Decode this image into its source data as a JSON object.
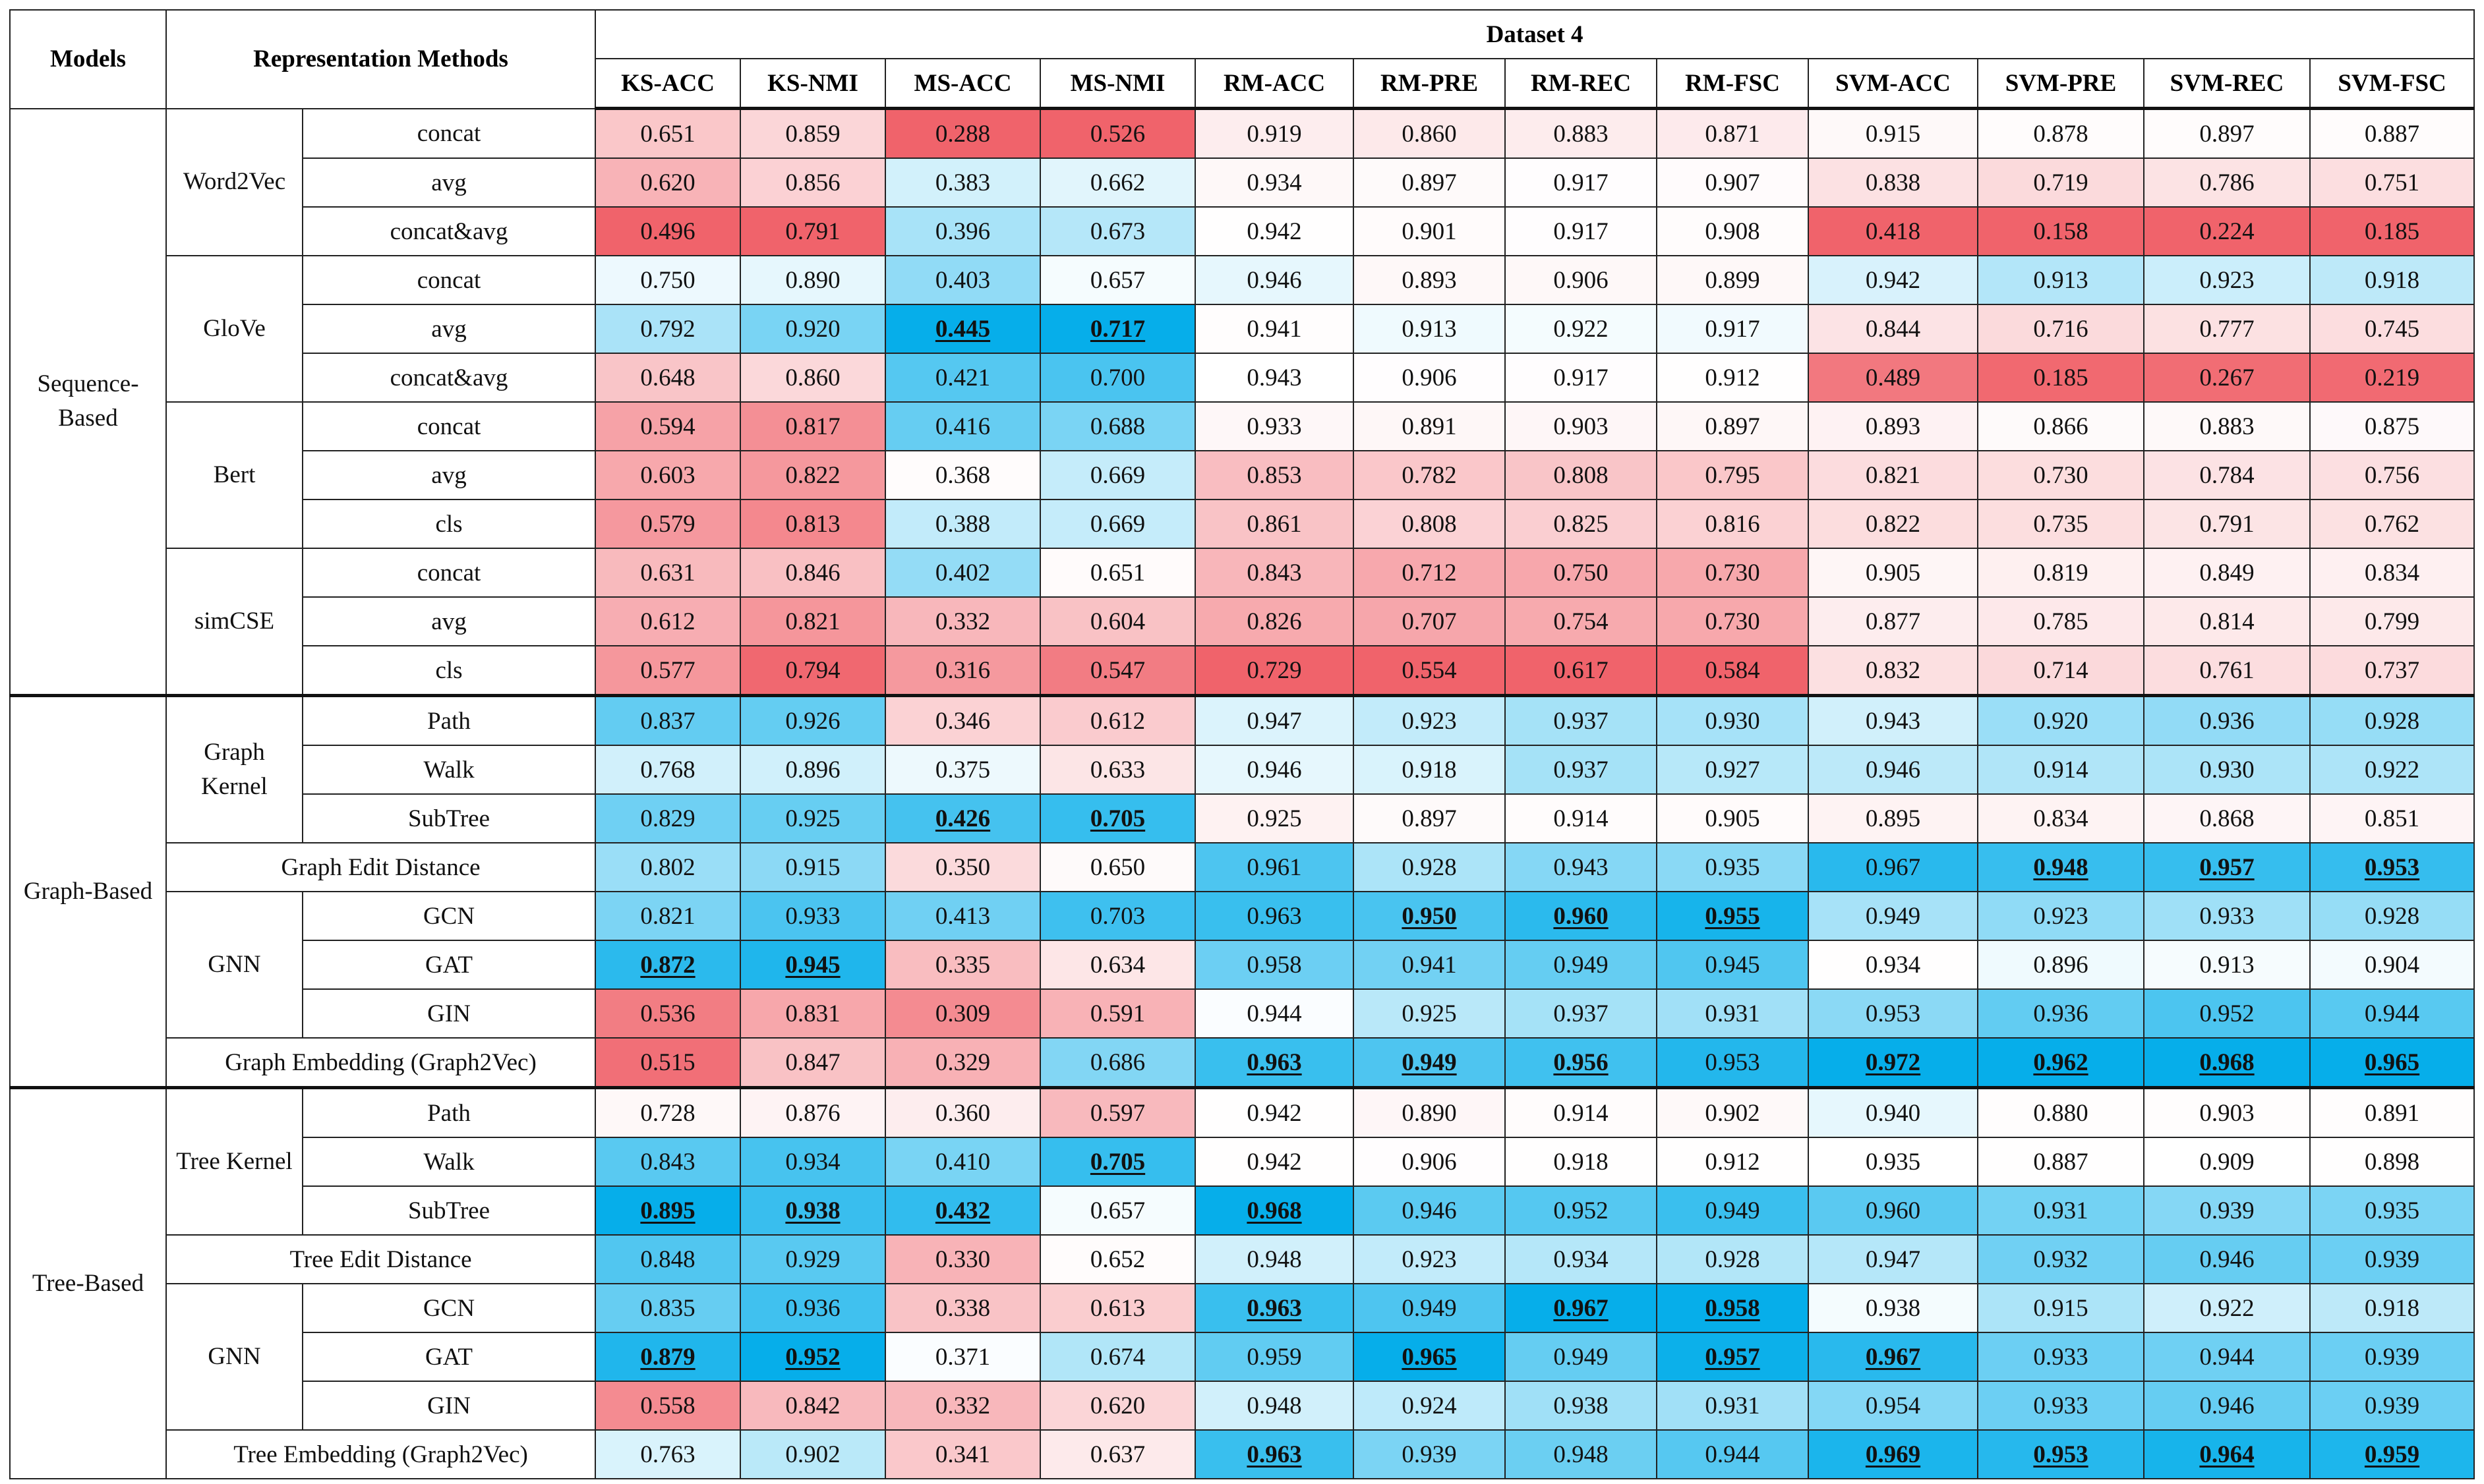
{
  "header": {
    "models": "Models",
    "representation_methods": "Representation Methods",
    "dataset": "Dataset 4",
    "metrics": [
      "KS-ACC",
      "KS-NMI",
      "MS-ACC",
      "MS-NMI",
      "RM-ACC",
      "RM-PRE",
      "RM-REC",
      "RM-FSC",
      "SVM-ACC",
      "SVM-PRE",
      "SVM-REC",
      "SVM-FSC"
    ]
  },
  "model_groups": [
    "Sequence-\nBased",
    "Graph-Based",
    "Tree-Based"
  ],
  "method_groups": {
    "word2vec": "Word2Vec",
    "glove": "GloVe",
    "bert": "Bert",
    "simcse": "simCSE",
    "graph_kernel": "Graph\nKernel",
    "graph_gnn": "GNN",
    "tree_kernel": "Tree Kernel",
    "tree_gnn": "GNN"
  },
  "palette": {
    "red": "#f0636b",
    "blue": "#06aeea",
    "white": "#ffffff"
  },
  "rows": [
    {
      "label": "concat",
      "values": [
        "0.651",
        "0.859",
        "0.288",
        "0.526",
        "0.919",
        "0.860",
        "0.883",
        "0.871",
        "0.915",
        "0.878",
        "0.897",
        "0.887"
      ],
      "best": []
    },
    {
      "label": "avg",
      "values": [
        "0.620",
        "0.856",
        "0.383",
        "0.662",
        "0.934",
        "0.897",
        "0.917",
        "0.907",
        "0.838",
        "0.719",
        "0.786",
        "0.751"
      ],
      "best": []
    },
    {
      "label": "concat&avg",
      "values": [
        "0.496",
        "0.791",
        "0.396",
        "0.673",
        "0.942",
        "0.901",
        "0.917",
        "0.908",
        "0.418",
        "0.158",
        "0.224",
        "0.185"
      ],
      "best": []
    },
    {
      "label": "concat",
      "values": [
        "0.750",
        "0.890",
        "0.403",
        "0.657",
        "0.946",
        "0.893",
        "0.906",
        "0.899",
        "0.942",
        "0.913",
        "0.923",
        "0.918"
      ],
      "best": []
    },
    {
      "label": "avg",
      "values": [
        "0.792",
        "0.920",
        "0.445",
        "0.717",
        "0.941",
        "0.913",
        "0.922",
        "0.917",
        "0.844",
        "0.716",
        "0.777",
        "0.745"
      ],
      "best": [
        2,
        3
      ]
    },
    {
      "label": "concat&avg",
      "values": [
        "0.648",
        "0.860",
        "0.421",
        "0.700",
        "0.943",
        "0.906",
        "0.917",
        "0.912",
        "0.489",
        "0.185",
        "0.267",
        "0.219"
      ],
      "best": []
    },
    {
      "label": "concat",
      "values": [
        "0.594",
        "0.817",
        "0.416",
        "0.688",
        "0.933",
        "0.891",
        "0.903",
        "0.897",
        "0.893",
        "0.866",
        "0.883",
        "0.875"
      ],
      "best": []
    },
    {
      "label": "avg",
      "values": [
        "0.603",
        "0.822",
        "0.368",
        "0.669",
        "0.853",
        "0.782",
        "0.808",
        "0.795",
        "0.821",
        "0.730",
        "0.784",
        "0.756"
      ],
      "best": []
    },
    {
      "label": "cls",
      "values": [
        "0.579",
        "0.813",
        "0.388",
        "0.669",
        "0.861",
        "0.808",
        "0.825",
        "0.816",
        "0.822",
        "0.735",
        "0.791",
        "0.762"
      ],
      "best": []
    },
    {
      "label": "concat",
      "values": [
        "0.631",
        "0.846",
        "0.402",
        "0.651",
        "0.843",
        "0.712",
        "0.750",
        "0.730",
        "0.905",
        "0.819",
        "0.849",
        "0.834"
      ],
      "best": []
    },
    {
      "label": "avg",
      "values": [
        "0.612",
        "0.821",
        "0.332",
        "0.604",
        "0.826",
        "0.707",
        "0.754",
        "0.730",
        "0.877",
        "0.785",
        "0.814",
        "0.799"
      ],
      "best": []
    },
    {
      "label": "cls",
      "values": [
        "0.577",
        "0.794",
        "0.316",
        "0.547",
        "0.729",
        "0.554",
        "0.617",
        "0.584",
        "0.832",
        "0.714",
        "0.761",
        "0.737"
      ],
      "best": []
    },
    {
      "label": "Path",
      "values": [
        "0.837",
        "0.926",
        "0.346",
        "0.612",
        "0.947",
        "0.923",
        "0.937",
        "0.930",
        "0.943",
        "0.920",
        "0.936",
        "0.928"
      ],
      "best": []
    },
    {
      "label": "Walk",
      "values": [
        "0.768",
        "0.896",
        "0.375",
        "0.633",
        "0.946",
        "0.918",
        "0.937",
        "0.927",
        "0.946",
        "0.914",
        "0.930",
        "0.922"
      ],
      "best": []
    },
    {
      "label": "SubTree",
      "values": [
        "0.829",
        "0.925",
        "0.426",
        "0.705",
        "0.925",
        "0.897",
        "0.914",
        "0.905",
        "0.895",
        "0.834",
        "0.868",
        "0.851"
      ],
      "best": [
        2,
        3
      ]
    },
    {
      "label": "Graph Edit Distance",
      "values": [
        "0.802",
        "0.915",
        "0.350",
        "0.650",
        "0.961",
        "0.928",
        "0.943",
        "0.935",
        "0.967",
        "0.948",
        "0.957",
        "0.953"
      ],
      "best": [
        9,
        10,
        11
      ]
    },
    {
      "label": "GCN",
      "values": [
        "0.821",
        "0.933",
        "0.413",
        "0.703",
        "0.963",
        "0.950",
        "0.960",
        "0.955",
        "0.949",
        "0.923",
        "0.933",
        "0.928"
      ],
      "best": [
        5,
        6,
        7
      ]
    },
    {
      "label": "GAT",
      "values": [
        "0.872",
        "0.945",
        "0.335",
        "0.634",
        "0.958",
        "0.941",
        "0.949",
        "0.945",
        "0.934",
        "0.896",
        "0.913",
        "0.904"
      ],
      "best": [
        0,
        1
      ]
    },
    {
      "label": "GIN",
      "values": [
        "0.536",
        "0.831",
        "0.309",
        "0.591",
        "0.944",
        "0.925",
        "0.937",
        "0.931",
        "0.953",
        "0.936",
        "0.952",
        "0.944"
      ],
      "best": []
    },
    {
      "label": "Graph Embedding (Graph2Vec)",
      "values": [
        "0.515",
        "0.847",
        "0.329",
        "0.686",
        "0.963",
        "0.949",
        "0.956",
        "0.953",
        "0.972",
        "0.962",
        "0.968",
        "0.965"
      ],
      "best": [
        4,
        5,
        6,
        8,
        9,
        10,
        11
      ]
    },
    {
      "label": "Path",
      "values": [
        "0.728",
        "0.876",
        "0.360",
        "0.597",
        "0.942",
        "0.890",
        "0.914",
        "0.902",
        "0.940",
        "0.880",
        "0.903",
        "0.891"
      ],
      "best": []
    },
    {
      "label": "Walk",
      "values": [
        "0.843",
        "0.934",
        "0.410",
        "0.705",
        "0.942",
        "0.906",
        "0.918",
        "0.912",
        "0.935",
        "0.887",
        "0.909",
        "0.898"
      ],
      "best": [
        3
      ]
    },
    {
      "label": "SubTree",
      "values": [
        "0.895",
        "0.938",
        "0.432",
        "0.657",
        "0.968",
        "0.946",
        "0.952",
        "0.949",
        "0.960",
        "0.931",
        "0.939",
        "0.935"
      ],
      "best": [
        0,
        1,
        2,
        4
      ]
    },
    {
      "label": "Tree Edit Distance",
      "values": [
        "0.848",
        "0.929",
        "0.330",
        "0.652",
        "0.948",
        "0.923",
        "0.934",
        "0.928",
        "0.947",
        "0.932",
        "0.946",
        "0.939"
      ],
      "best": []
    },
    {
      "label": "GCN",
      "values": [
        "0.835",
        "0.936",
        "0.338",
        "0.613",
        "0.963",
        "0.949",
        "0.967",
        "0.958",
        "0.938",
        "0.915",
        "0.922",
        "0.918"
      ],
      "best": [
        4,
        6,
        7
      ]
    },
    {
      "label": "GAT",
      "values": [
        "0.879",
        "0.952",
        "0.371",
        "0.674",
        "0.959",
        "0.965",
        "0.949",
        "0.957",
        "0.967",
        "0.933",
        "0.944",
        "0.939"
      ],
      "best": [
        0,
        1,
        5,
        7,
        8
      ]
    },
    {
      "label": "GIN",
      "values": [
        "0.558",
        "0.842",
        "0.332",
        "0.620",
        "0.948",
        "0.924",
        "0.938",
        "0.931",
        "0.954",
        "0.933",
        "0.946",
        "0.939"
      ],
      "best": []
    },
    {
      "label": "Tree Embedding (Graph2Vec)",
      "values": [
        "0.763",
        "0.902",
        "0.341",
        "0.637",
        "0.963",
        "0.939",
        "0.948",
        "0.944",
        "0.969",
        "0.953",
        "0.964",
        "0.959"
      ],
      "best": [
        4,
        8,
        9,
        10,
        11
      ]
    }
  ]
}
